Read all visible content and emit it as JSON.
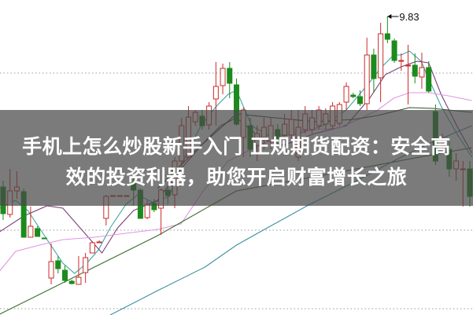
{
  "title": {
    "line1": "手机上怎么炒股新手入门 正规期货配资：安全高",
    "line2": "效的投资利器，助您开启财富增长之旅"
  },
  "chart_data": {
    "type": "candlestick",
    "ylim": [
      6.03,
      10.04
    ],
    "grid": "horizontal dotted",
    "gridlines": [
      9.11,
      7.11,
      6.11
    ],
    "annotation": {
      "label": "9.83",
      "value": 9.83,
      "candle_index": 56
    },
    "colors": {
      "up": "#cc2a2a",
      "down": "#1c8a1c",
      "grid": "#9a9a9a"
    },
    "candles_ohlc": [
      [
        7.66,
        7.74,
        7.24,
        7.32
      ],
      [
        7.31,
        7.89,
        7.27,
        7.61
      ],
      [
        7.61,
        7.86,
        7.51,
        7.66
      ],
      [
        7.6,
        7.64,
        7.02,
        7.02
      ],
      [
        7.02,
        7.41,
        7.02,
        7.16
      ],
      [
        7.13,
        7.16,
        7.03,
        7.03
      ],
      [
        7.01,
        7.01,
        7.0,
        7.0
      ],
      [
        6.5,
        6.94,
        6.42,
        6.71
      ],
      [
        6.72,
        6.78,
        6.56,
        6.62
      ],
      [
        6.6,
        6.66,
        6.44,
        6.47
      ],
      [
        6.46,
        6.48,
        6.42,
        6.43
      ],
      [
        6.42,
        6.78,
        6.42,
        6.51
      ],
      [
        6.57,
        6.82,
        6.44,
        6.76
      ],
      [
        6.82,
        6.97,
        6.82,
        6.95
      ],
      [
        6.95,
        6.98,
        6.95,
        6.96
      ],
      [
        7.26,
        7.56,
        7.17,
        7.54
      ],
      [
        7.55,
        7.55,
        7.55,
        7.55
      ],
      [
        7.55,
        7.55,
        7.55,
        7.55
      ],
      [
        7.55,
        7.55,
        7.55,
        7.55
      ],
      [
        7.72,
        7.82,
        7.42,
        7.62
      ],
      [
        7.62,
        7.64,
        7.26,
        7.26
      ],
      [
        7.27,
        7.49,
        7.25,
        7.44
      ],
      [
        7.45,
        7.51,
        7.34,
        7.37
      ],
      [
        7.39,
        7.64,
        7.05,
        7.62
      ],
      [
        7.62,
        7.66,
        7.44,
        7.55
      ],
      [
        7.56,
        8.04,
        7.39,
        7.99
      ],
      [
        7.99,
        8.54,
        7.94,
        8.44
      ],
      [
        8.04,
        8.69,
        8.02,
        8.55
      ],
      [
        8.49,
        8.64,
        8.44,
        8.61
      ],
      [
        8.56,
        8.64,
        8.39,
        8.44
      ],
      [
        8.45,
        8.74,
        8.39,
        8.69
      ],
      [
        8.78,
        9.25,
        8.44,
        8.94
      ],
      [
        8.95,
        9.23,
        8.84,
        9.17
      ],
      [
        9.17,
        9.25,
        8.79,
        8.98
      ],
      [
        8.96,
        9.04,
        8.44,
        8.46
      ],
      [
        8.29,
        8.67,
        8.04,
        8.64
      ],
      [
        8.44,
        8.54,
        8.04,
        8.14
      ],
      [
        8.19,
        8.44,
        7.99,
        8.34
      ],
      [
        8.29,
        8.54,
        8.14,
        8.42
      ],
      [
        8.24,
        8.54,
        8.14,
        8.44
      ],
      [
        8.39,
        8.46,
        8.19,
        8.26
      ],
      [
        8.32,
        8.59,
        8.24,
        8.46
      ],
      [
        8.32,
        8.64,
        8.26,
        8.52
      ],
      [
        8.04,
        8.64,
        7.99,
        8.42
      ],
      [
        8.39,
        8.69,
        8.34,
        8.59
      ],
      [
        8.39,
        8.64,
        8.34,
        8.54
      ],
      [
        8.44,
        8.69,
        8.39,
        8.64
      ],
      [
        8.46,
        8.66,
        8.39,
        8.59
      ],
      [
        8.44,
        8.74,
        8.39,
        8.69
      ],
      [
        8.47,
        8.74,
        8.44,
        8.71
      ],
      [
        8.74,
        8.99,
        8.64,
        8.94
      ],
      [
        8.83,
        8.86,
        8.79,
        8.81
      ],
      [
        8.81,
        8.89,
        8.69,
        8.72
      ],
      [
        8.72,
        9.56,
        8.64,
        9.34
      ],
      [
        9.34,
        9.42,
        8.86,
        9.04
      ],
      [
        9.05,
        9.75,
        8.74,
        9.61
      ],
      [
        9.61,
        9.83,
        9.49,
        9.54
      ],
      [
        9.52,
        9.55,
        9.24,
        9.27
      ],
      [
        9.26,
        9.36,
        9.14,
        9.27
      ],
      [
        9.2,
        9.47,
        8.71,
        9.21
      ],
      [
        9.21,
        9.36,
        8.98,
        9.07
      ],
      [
        9.06,
        9.37,
        8.91,
        9.18
      ],
      [
        9.18,
        9.26,
        8.86,
        8.88
      ],
      [
        8.62,
        8.71,
        7.94,
        7.99
      ],
      [
        8.19,
        8.34,
        8.14,
        8.21
      ],
      [
        8.14,
        8.24,
        7.79,
        7.89
      ],
      [
        7.89,
        8.09,
        7.74,
        7.99
      ],
      [
        7.88,
        7.99,
        7.41,
        7.89
      ],
      [
        7.89,
        7.99,
        7.41,
        7.54
      ]
    ],
    "moving_averages": [
      {
        "color": "#3fa5a0",
        "points": [
          [
            -0.5,
            7.39
          ],
          [
            1.8,
            7.49
          ],
          [
            3.6,
            7.36
          ],
          [
            6.4,
            6.99
          ],
          [
            8.7,
            6.69
          ],
          [
            10.4,
            6.56
          ],
          [
            12.2,
            6.69
          ],
          [
            13.9,
            6.86
          ],
          [
            15.6,
            7.14
          ],
          [
            17.9,
            7.44
          ],
          [
            19.6,
            7.56
          ],
          [
            21.9,
            7.46
          ],
          [
            24.2,
            7.54
          ],
          [
            26.5,
            8.04
          ],
          [
            28.8,
            8.44
          ],
          [
            31.1,
            8.69
          ],
          [
            32.8,
            8.84
          ],
          [
            34,
            8.89
          ],
          [
            36.2,
            8.44
          ],
          [
            39.1,
            8.29
          ],
          [
            43.1,
            8.34
          ],
          [
            46.6,
            8.44
          ],
          [
            50,
            8.64
          ],
          [
            52.9,
            8.94
          ],
          [
            55.2,
            9.19
          ],
          [
            56.9,
            9.34
          ],
          [
            58,
            9.34
          ],
          [
            59.2,
            9.39
          ],
          [
            60.9,
            9.26
          ],
          [
            62,
            9.04
          ],
          [
            63.8,
            8.69
          ],
          [
            66.1,
            8.34
          ],
          [
            68.3,
            8.04
          ]
        ]
      },
      {
        "color": "#7a3f78",
        "points": [
          [
            -0.5,
            7.09
          ],
          [
            3,
            7.29
          ],
          [
            6.4,
            7.42
          ],
          [
            8.7,
            7.39
          ],
          [
            12.2,
            7.04
          ],
          [
            14.4,
            6.82
          ],
          [
            16.7,
            7.14
          ],
          [
            19,
            7.36
          ],
          [
            22.5,
            7.49
          ],
          [
            25.9,
            7.89
          ],
          [
            29.4,
            8.24
          ],
          [
            31.7,
            8.44
          ],
          [
            34,
            8.54
          ],
          [
            37.4,
            8.29
          ],
          [
            40.8,
            8.19
          ],
          [
            45.4,
            8.34
          ],
          [
            50,
            8.44
          ],
          [
            53.4,
            8.79
          ],
          [
            55.7,
            9.09
          ],
          [
            58,
            9.19
          ],
          [
            60.3,
            9.26
          ],
          [
            62,
            9.24
          ],
          [
            63.8,
            8.84
          ],
          [
            66.1,
            8.44
          ],
          [
            68.3,
            8.09
          ]
        ]
      },
      {
        "color": "#e394e3",
        "points": [
          [
            -0.5,
            6.59
          ],
          [
            1.8,
            6.84
          ],
          [
            5.3,
            6.92
          ],
          [
            8.7,
            6.99
          ],
          [
            13.3,
            7.02
          ],
          [
            17.9,
            7.07
          ],
          [
            22.5,
            7.12
          ],
          [
            25.9,
            7.19
          ],
          [
            29.4,
            7.64
          ],
          [
            32.8,
            7.99
          ],
          [
            36.2,
            8.14
          ],
          [
            40.8,
            8.34
          ],
          [
            45.4,
            8.39
          ],
          [
            48.9,
            8.41
          ],
          [
            52.3,
            8.54
          ],
          [
            54.6,
            8.64
          ],
          [
            56.9,
            8.79
          ],
          [
            59.2,
            8.86
          ],
          [
            62,
            8.86
          ],
          [
            64.9,
            8.82
          ],
          [
            68.3,
            8.76
          ]
        ]
      },
      {
        "color": "#2f4f2a",
        "points": [
          [
            22.5,
            7.64
          ],
          [
            28.2,
            8.14
          ],
          [
            34,
            8.59
          ],
          [
            39.7,
            8.54
          ],
          [
            45.4,
            8.49
          ],
          [
            51.1,
            8.52
          ],
          [
            54.6,
            8.57
          ],
          [
            59.2,
            8.67
          ],
          [
            62.6,
            8.66
          ],
          [
            68.3,
            8.61
          ]
        ]
      },
      {
        "color": "#3d6b2e",
        "points": [
          [
            -0.5,
            6.04
          ],
          [
            11,
            6.54
          ],
          [
            22.5,
            7.04
          ],
          [
            34,
            7.61
          ],
          [
            45.4,
            7.79
          ],
          [
            60.7,
            8.04
          ],
          [
            68.3,
            8.16
          ]
        ]
      },
      {
        "color": "#3c8fa0",
        "points": [
          [
            15.6,
            6.03
          ],
          [
            22.5,
            6.34
          ],
          [
            29.4,
            6.64
          ],
          [
            34,
            6.92
          ],
          [
            38.5,
            7.14
          ],
          [
            44.3,
            7.42
          ],
          [
            51.1,
            7.72
          ],
          [
            56.9,
            7.99
          ],
          [
            61.5,
            8.19
          ],
          [
            68.3,
            8.44
          ]
        ]
      }
    ]
  }
}
